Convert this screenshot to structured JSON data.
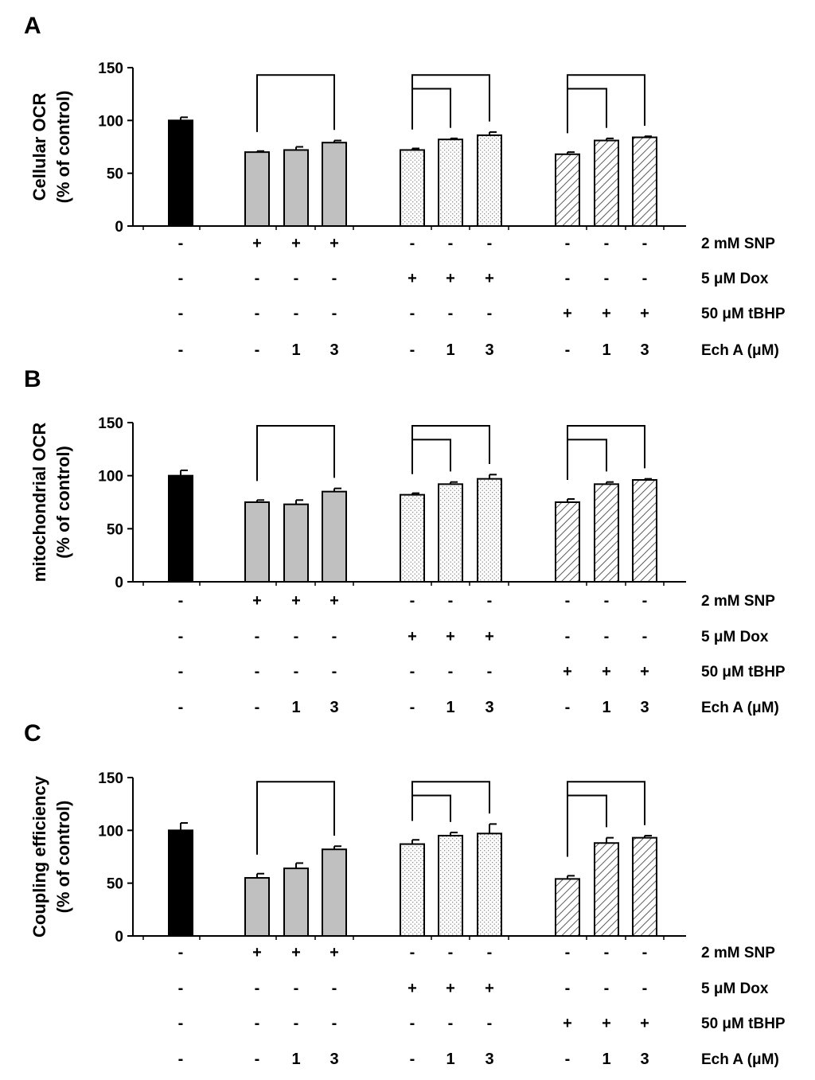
{
  "chart_data": [
    {
      "type": "bar",
      "panel": "A",
      "ylabel": [
        "Cellular OCR",
        "(% of control)"
      ],
      "ylim": [
        0,
        150
      ],
      "yticks": [
        0,
        50,
        100,
        150
      ],
      "values": [
        100,
        70,
        72,
        79,
        72,
        82,
        86,
        68,
        81,
        84
      ],
      "errors": [
        3,
        1,
        3,
        2,
        1.5,
        1,
        3,
        2,
        2,
        1
      ],
      "fills": [
        "black",
        "gray",
        "gray",
        "gray",
        "dots",
        "dots",
        "dots",
        "hatch",
        "hatch",
        "hatch"
      ],
      "brackets": [
        {
          "from": 1,
          "to": 3,
          "level": 143
        },
        {
          "from": 4,
          "to": 5,
          "level": 130
        },
        {
          "from": 4,
          "to": 6,
          "level": 143
        },
        {
          "from": 7,
          "to": 8,
          "level": 130
        },
        {
          "from": 7,
          "to": 9,
          "level": 143
        }
      ],
      "conditions": [
        {
          "label": "2 mM SNP",
          "marks": [
            "-",
            "+",
            "+",
            "+",
            "-",
            "-",
            "-",
            "-",
            "-",
            "-"
          ]
        },
        {
          "label": "5 μM Dox",
          "marks": [
            "-",
            "-",
            "-",
            "-",
            "+",
            "+",
            "+",
            "-",
            "-",
            "-"
          ]
        },
        {
          "label": "50 μM tBHP",
          "marks": [
            "-",
            "-",
            "-",
            "-",
            "-",
            "-",
            "-",
            "+",
            "+",
            "+"
          ]
        },
        {
          "label": "Ech A (μM)",
          "marks": [
            "-",
            "-",
            "1",
            "3",
            "-",
            "1",
            "3",
            "-",
            "1",
            "3"
          ]
        }
      ]
    },
    {
      "type": "bar",
      "panel": "B",
      "ylabel": [
        "mitochondrial OCR",
        "(% of control)"
      ],
      "ylim": [
        0,
        150
      ],
      "yticks": [
        0,
        50,
        100,
        150
      ],
      "values": [
        100,
        75,
        73,
        85,
        82,
        92,
        97,
        75,
        92,
        96
      ],
      "errors": [
        5,
        2,
        4,
        3,
        1.5,
        2,
        4,
        3,
        2,
        1
      ],
      "fills": [
        "black",
        "gray",
        "gray",
        "gray",
        "dots",
        "dots",
        "dots",
        "hatch",
        "hatch",
        "hatch"
      ],
      "brackets": [
        {
          "from": 1,
          "to": 3,
          "level": 147
        },
        {
          "from": 4,
          "to": 5,
          "level": 134
        },
        {
          "from": 4,
          "to": 6,
          "level": 147
        },
        {
          "from": 7,
          "to": 8,
          "level": 134
        },
        {
          "from": 7,
          "to": 9,
          "level": 147
        }
      ],
      "conditions": [
        {
          "label": "2 mM SNP",
          "marks": [
            "-",
            "+",
            "+",
            "+",
            "-",
            "-",
            "-",
            "-",
            "-",
            "-"
          ]
        },
        {
          "label": "5 μM Dox",
          "marks": [
            "-",
            "-",
            "-",
            "-",
            "+",
            "+",
            "+",
            "-",
            "-",
            "-"
          ]
        },
        {
          "label": "50 μM tBHP",
          "marks": [
            "-",
            "-",
            "-",
            "-",
            "-",
            "-",
            "-",
            "+",
            "+",
            "+"
          ]
        },
        {
          "label": "Ech A (μM)",
          "marks": [
            "-",
            "-",
            "1",
            "3",
            "-",
            "1",
            "3",
            "-",
            "1",
            "3"
          ]
        }
      ]
    },
    {
      "type": "bar",
      "panel": "C",
      "ylabel": [
        "Coupling efficiency",
        "(% of control)"
      ],
      "ylim": [
        0,
        150
      ],
      "yticks": [
        0,
        50,
        100,
        150
      ],
      "values": [
        100,
        55,
        64,
        82,
        87,
        95,
        97,
        54,
        88,
        93
      ],
      "errors": [
        7,
        4,
        5,
        3,
        4,
        3,
        9,
        3,
        5,
        2
      ],
      "fills": [
        "black",
        "gray",
        "gray",
        "gray",
        "dots",
        "dots",
        "dots",
        "hatch",
        "hatch",
        "hatch"
      ],
      "brackets": [
        {
          "from": 1,
          "to": 3,
          "level": 146
        },
        {
          "from": 4,
          "to": 5,
          "level": 133
        },
        {
          "from": 4,
          "to": 6,
          "level": 146
        },
        {
          "from": 7,
          "to": 8,
          "level": 133
        },
        {
          "from": 7,
          "to": 9,
          "level": 146
        }
      ],
      "conditions": [
        {
          "label": "2 mM SNP",
          "marks": [
            "-",
            "+",
            "+",
            "+",
            "-",
            "-",
            "-",
            "-",
            "-",
            "-"
          ]
        },
        {
          "label": "5 μM Dox",
          "marks": [
            "-",
            "-",
            "-",
            "-",
            "+",
            "+",
            "+",
            "-",
            "-",
            "-"
          ]
        },
        {
          "label": "50 μM tBHP",
          "marks": [
            "-",
            "-",
            "-",
            "-",
            "-",
            "-",
            "-",
            "+",
            "+",
            "+"
          ]
        },
        {
          "label": "Ech A (μM)",
          "marks": [
            "-",
            "-",
            "1",
            "3",
            "-",
            "1",
            "3",
            "-",
            "1",
            "3"
          ]
        }
      ]
    }
  ],
  "colors": {
    "control": "#000000",
    "gray_fill": "#c0c0c0",
    "stroke": "#000000",
    "background": "#ffffff"
  }
}
